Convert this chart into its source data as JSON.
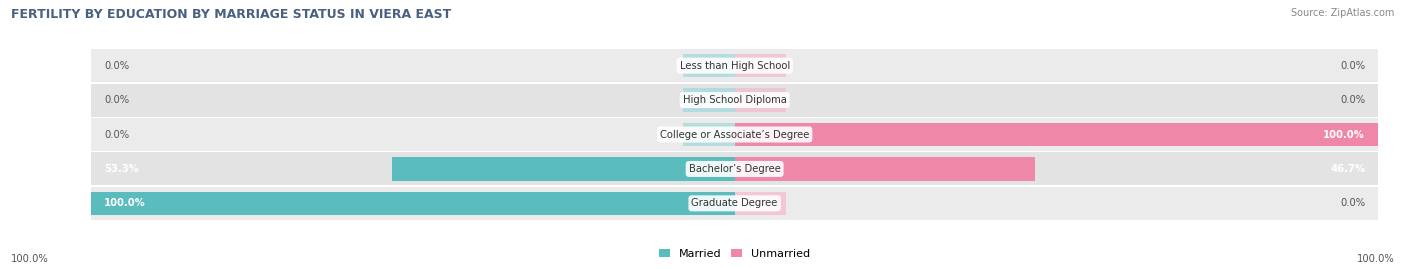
{
  "title": "FERTILITY BY EDUCATION BY MARRIAGE STATUS IN VIERA EAST",
  "source": "Source: ZipAtlas.com",
  "categories": [
    "Less than High School",
    "High School Diploma",
    "College or Associate’s Degree",
    "Bachelor’s Degree",
    "Graduate Degree"
  ],
  "married": [
    0.0,
    0.0,
    0.0,
    53.3,
    100.0
  ],
  "unmarried": [
    0.0,
    0.0,
    100.0,
    46.7,
    0.0
  ],
  "married_color": "#5BBCBE",
  "unmarried_color": "#EF87A8",
  "stub_married_color": "#9DD8DA",
  "stub_unmarried_color": "#F5B8CE",
  "row_bg_colors": [
    "#EBEBEB",
    "#E3E3E3"
  ],
  "label_color": "#444444",
  "title_color": "#4A6080",
  "source_color": "#888888",
  "legend_married": "Married",
  "legend_unmarried": "Unmarried",
  "axis_max": 100.0,
  "stub_pct": 8.0,
  "bottom_left_label": "100.0%",
  "bottom_right_label": "100.0%",
  "value_label_married_fmt": [
    "0.0%",
    "0.0%",
    "0.0%",
    "53.3%",
    "100.0%"
  ],
  "value_label_unmarried_fmt": [
    "0.0%",
    "0.0%",
    "100.0%",
    "46.7%",
    "0.0%"
  ]
}
